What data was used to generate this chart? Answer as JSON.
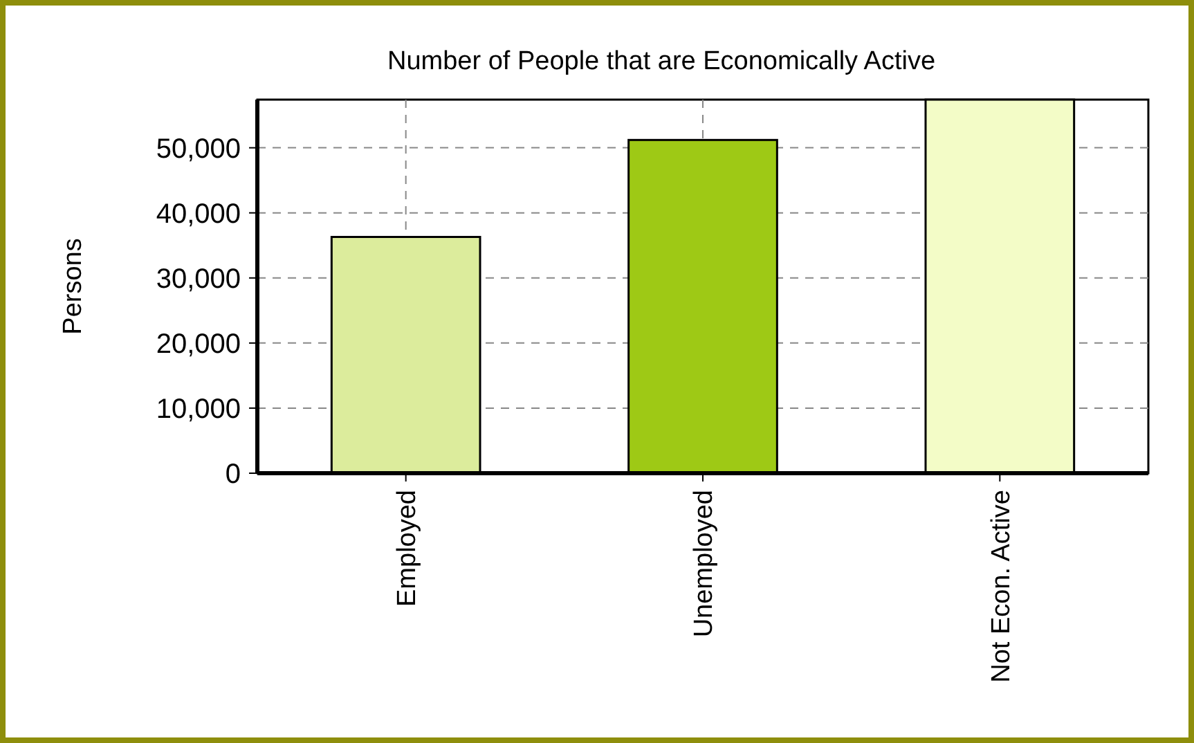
{
  "chart_data": {
    "type": "bar",
    "title": "Number of People that are Economically Active",
    "ylabel": "Persons",
    "categories": [
      "Employed",
      "Unemployed",
      "Not Econ. Active"
    ],
    "values": [
      36300,
      51200,
      57400
    ],
    "colors": [
      "#dcec9c",
      "#9ec915",
      "#f3fcc7"
    ],
    "ylim": [
      0,
      57400
    ],
    "yticks": [
      {
        "value": 0,
        "label": "0"
      },
      {
        "value": 10000,
        "label": "10,000"
      },
      {
        "value": 20000,
        "label": "20,000"
      },
      {
        "value": 30000,
        "label": "30,000"
      },
      {
        "value": 40000,
        "label": "40,000"
      },
      {
        "value": 50000,
        "label": "50,000"
      }
    ],
    "grid": true
  }
}
